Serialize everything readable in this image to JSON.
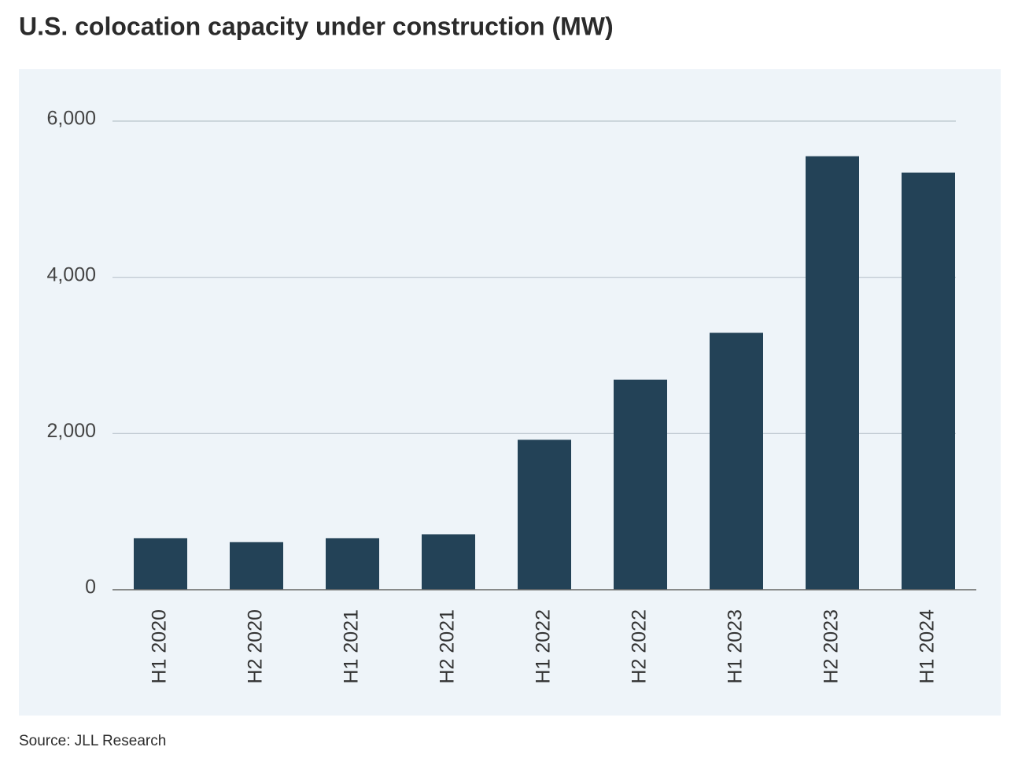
{
  "chart_data": {
    "type": "bar",
    "title": "U.S. colocation capacity under construction (MW)",
    "categories": [
      "H1 2020",
      "H2 2020",
      "H1 2021",
      "H2 2021",
      "H1 2022",
      "H2 2022",
      "H1 2023",
      "H2 2023",
      "H1 2024"
    ],
    "values": [
      660,
      610,
      660,
      710,
      1920,
      2690,
      3290,
      5550,
      5340
    ],
    "color": "#234257",
    "ylim": [
      0,
      6000
    ],
    "yticks": [
      0,
      {
        "value": 2000,
        "label": "2,000"
      },
      {
        "value": 4000,
        "label": "4,000"
      },
      {
        "value": 6000,
        "label": "6,000"
      }
    ],
    "grid": true,
    "source": "Source: JLL Research"
  }
}
